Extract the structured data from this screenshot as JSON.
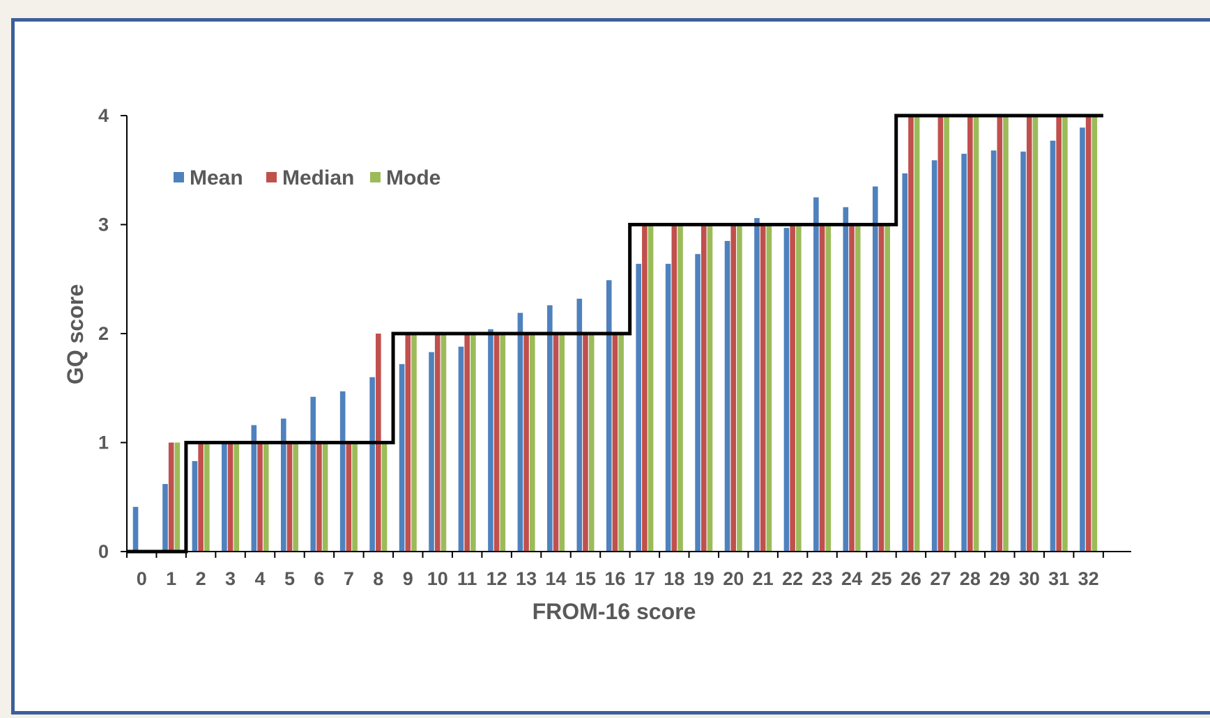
{
  "chart_data": {
    "type": "bar",
    "xlabel": "FROM-16 score",
    "ylabel": "GQ score",
    "ylim": [
      0,
      4
    ],
    "yticks": [
      "0",
      "1",
      "2",
      "3",
      "4"
    ],
    "legend_placement": "top-left",
    "categories": [
      "0",
      "1",
      "2",
      "3",
      "4",
      "5",
      "6",
      "7",
      "8",
      "9",
      "10",
      "11",
      "12",
      "13",
      "14",
      "15",
      "16",
      "17",
      "18",
      "19",
      "20",
      "21",
      "22",
      "23",
      "24",
      "25",
      "26",
      "27",
      "28",
      "29",
      "30",
      "31",
      "32"
    ],
    "series": [
      {
        "name": "Mean",
        "color": "#4f81bd",
        "values": [
          0.41,
          0.62,
          0.83,
          1.01,
          1.16,
          1.22,
          1.42,
          1.47,
          1.6,
          1.72,
          1.83,
          1.88,
          2.04,
          2.19,
          2.26,
          2.32,
          2.49,
          2.64,
          2.64,
          2.73,
          2.85,
          3.06,
          2.97,
          3.25,
          3.16,
          3.35,
          3.47,
          3.59,
          3.65,
          3.68,
          3.67,
          3.77,
          3.89
        ]
      },
      {
        "name": "Median",
        "color": "#c0504d",
        "values": [
          0,
          1,
          1,
          1,
          1,
          1,
          1,
          1,
          2,
          2,
          2,
          2,
          2,
          2,
          2,
          2,
          2,
          3,
          3,
          3,
          3,
          3,
          3,
          3,
          3,
          3,
          4,
          4,
          4,
          4,
          4,
          4,
          4
        ]
      },
      {
        "name": "Mode",
        "color": "#9bbb59",
        "values": [
          0,
          1,
          1,
          1,
          1,
          1,
          1,
          1,
          1,
          2,
          2,
          2,
          2,
          2,
          2,
          2,
          2,
          3,
          3,
          3,
          3,
          3,
          3,
          3,
          3,
          3,
          4,
          4,
          4,
          4,
          4,
          4,
          4
        ]
      }
    ],
    "step_line": {
      "color": "#000000",
      "values": [
        0,
        0,
        1,
        1,
        1,
        1,
        1,
        1,
        1,
        2,
        2,
        2,
        2,
        2,
        2,
        2,
        2,
        3,
        3,
        3,
        3,
        3,
        3,
        3,
        3,
        3,
        4,
        4,
        4,
        4,
        4,
        4,
        4
      ]
    }
  }
}
